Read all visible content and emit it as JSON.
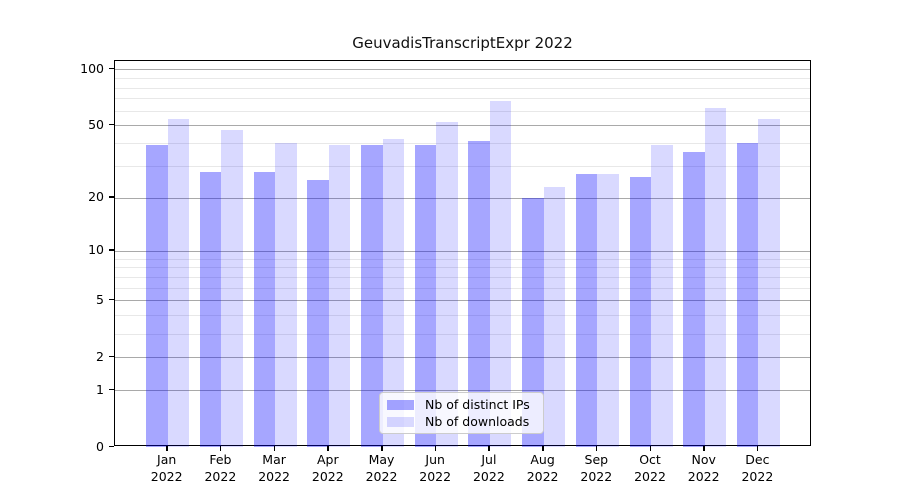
{
  "chart_data": {
    "type": "bar",
    "title": "GeuvadisTranscriptExpr 2022",
    "categories": [
      "Jan 2022",
      "Feb 2022",
      "Mar 2022",
      "Apr 2022",
      "May 2022",
      "Jun 2022",
      "Jul 2022",
      "Aug 2022",
      "Sep 2022",
      "Oct 2022",
      "Nov 2022",
      "Dec 2022"
    ],
    "series": [
      {
        "name": "Nb of distinct IPs",
        "color": "rgba(0,0,255,0.35)",
        "values": [
          39,
          28,
          28,
          25,
          39,
          39,
          41,
          20,
          27,
          26,
          36,
          40
        ]
      },
      {
        "name": "Nb of downloads",
        "color": "rgba(0,0,255,0.15)",
        "values": [
          54,
          47,
          40,
          39,
          42,
          52,
          68,
          23,
          27,
          39,
          62,
          54
        ]
      }
    ],
    "xlabel": "",
    "ylabel": "",
    "yscale": "symlog",
    "ylim": [
      0,
      112
    ],
    "yticks": [
      0,
      1,
      2,
      5,
      10,
      20,
      50,
      100
    ],
    "minor_gridticks": [
      3,
      4,
      6,
      7,
      8,
      9,
      30,
      40,
      60,
      70,
      80,
      90
    ],
    "grid": "major and minor horizontal gridlines",
    "legend_position": "lower center",
    "colors": {
      "bar_base": "#0000ff",
      "major_grid": "#a9a9a9",
      "minor_grid": "#e8e8e8",
      "axis": "#000000",
      "legend_border": "#cccccc"
    }
  }
}
